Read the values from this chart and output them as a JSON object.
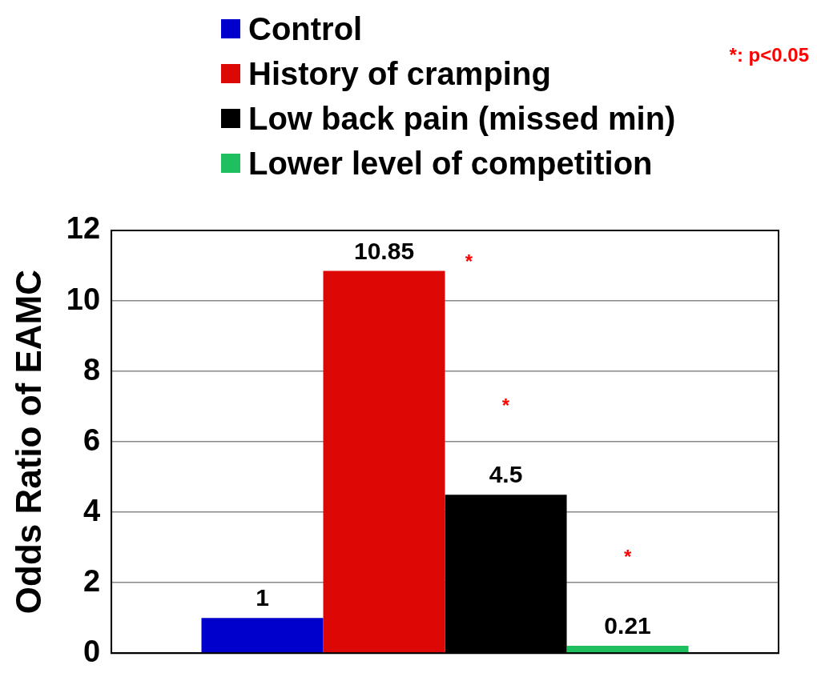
{
  "chart_data": {
    "type": "bar",
    "ylabel": "Odds Ratio of EAMC",
    "categories": [
      null
    ],
    "series": [
      {
        "name": "Control",
        "color": "#0000cc",
        "values": [
          1
        ]
      },
      {
        "name": "History of cramping",
        "color": "#dd0806",
        "values": [
          10.85
        ]
      },
      {
        "name": "Low back pain (missed min)",
        "color": "#000000",
        "values": [
          4.5
        ]
      },
      {
        "name": "Lower level of competition",
        "color": "#1fbf5f",
        "values": [
          0.21
        ]
      }
    ],
    "ylim": [
      0,
      12
    ],
    "yticks": [
      0,
      2,
      4,
      6,
      8,
      10,
      12
    ],
    "grid": "y",
    "legend": "top",
    "data_labels": true,
    "annotations": [
      "*: p<0.05",
      "*",
      "*",
      "*"
    ]
  }
}
